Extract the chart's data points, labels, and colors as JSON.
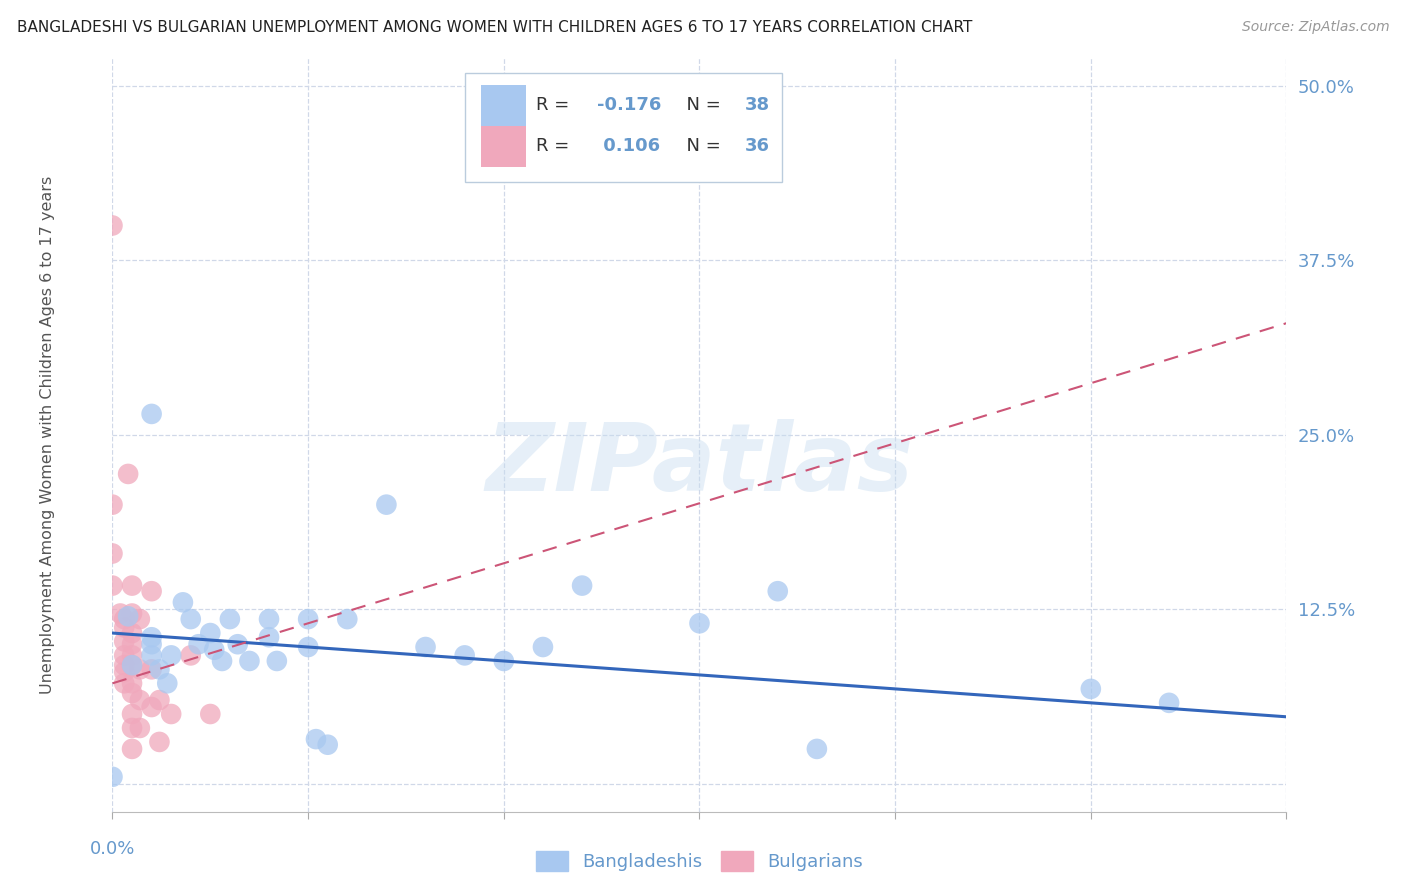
{
  "title": "BANGLADESHI VS BULGARIAN UNEMPLOYMENT AMONG WOMEN WITH CHILDREN AGES 6 TO 17 YEARS CORRELATION CHART",
  "source": "Source: ZipAtlas.com",
  "ylabel": "Unemployment Among Women with Children Ages 6 to 17 years",
  "watermark": "ZIPatlas",
  "xlim": [
    0.0,
    0.3
  ],
  "ylim": [
    -0.02,
    0.52
  ],
  "ylim_data": [
    0.0,
    0.5
  ],
  "xticks": [
    0.0,
    0.05,
    0.1,
    0.15,
    0.2,
    0.25,
    0.3
  ],
  "yticks_right": [
    0.0,
    0.125,
    0.25,
    0.375,
    0.5
  ],
  "yticklabels_right": [
    "",
    "12.5%",
    "25.0%",
    "37.5%",
    "50.0%"
  ],
  "legend_blue_label": "Bangladeshis",
  "legend_pink_label": "Bulgarians",
  "blue_color": "#a8c8f0",
  "pink_color": "#f0a8bc",
  "blue_line_color": "#3366bb",
  "pink_line_color": "#cc5577",
  "grid_color": "#d0d8e8",
  "axis_label_color": "#6699cc",
  "blue_scatter": [
    [
      0.0,
      0.005
    ],
    [
      0.004,
      0.12
    ],
    [
      0.005,
      0.085
    ],
    [
      0.01,
      0.265
    ],
    [
      0.01,
      0.1
    ],
    [
      0.01,
      0.092
    ],
    [
      0.01,
      0.105
    ],
    [
      0.012,
      0.082
    ],
    [
      0.014,
      0.072
    ],
    [
      0.015,
      0.092
    ],
    [
      0.018,
      0.13
    ],
    [
      0.02,
      0.118
    ],
    [
      0.022,
      0.1
    ],
    [
      0.025,
      0.108
    ],
    [
      0.026,
      0.096
    ],
    [
      0.028,
      0.088
    ],
    [
      0.03,
      0.118
    ],
    [
      0.032,
      0.1
    ],
    [
      0.035,
      0.088
    ],
    [
      0.04,
      0.118
    ],
    [
      0.04,
      0.105
    ],
    [
      0.042,
      0.088
    ],
    [
      0.05,
      0.098
    ],
    [
      0.05,
      0.118
    ],
    [
      0.052,
      0.032
    ],
    [
      0.055,
      0.028
    ],
    [
      0.06,
      0.118
    ],
    [
      0.07,
      0.2
    ],
    [
      0.08,
      0.098
    ],
    [
      0.09,
      0.092
    ],
    [
      0.1,
      0.088
    ],
    [
      0.11,
      0.098
    ],
    [
      0.12,
      0.142
    ],
    [
      0.15,
      0.115
    ],
    [
      0.17,
      0.138
    ],
    [
      0.18,
      0.025
    ],
    [
      0.25,
      0.068
    ],
    [
      0.27,
      0.058
    ]
  ],
  "pink_scatter": [
    [
      0.0,
      0.4
    ],
    [
      0.0,
      0.2
    ],
    [
      0.0,
      0.165
    ],
    [
      0.0,
      0.142
    ],
    [
      0.002,
      0.122
    ],
    [
      0.003,
      0.118
    ],
    [
      0.003,
      0.112
    ],
    [
      0.003,
      0.102
    ],
    [
      0.003,
      0.092
    ],
    [
      0.003,
      0.085
    ],
    [
      0.003,
      0.08
    ],
    [
      0.003,
      0.072
    ],
    [
      0.004,
      0.222
    ],
    [
      0.005,
      0.142
    ],
    [
      0.005,
      0.122
    ],
    [
      0.005,
      0.108
    ],
    [
      0.005,
      0.1
    ],
    [
      0.005,
      0.092
    ],
    [
      0.005,
      0.085
    ],
    [
      0.005,
      0.072
    ],
    [
      0.005,
      0.065
    ],
    [
      0.005,
      0.05
    ],
    [
      0.005,
      0.04
    ],
    [
      0.005,
      0.025
    ],
    [
      0.007,
      0.118
    ],
    [
      0.007,
      0.082
    ],
    [
      0.007,
      0.06
    ],
    [
      0.007,
      0.04
    ],
    [
      0.01,
      0.138
    ],
    [
      0.01,
      0.082
    ],
    [
      0.01,
      0.055
    ],
    [
      0.012,
      0.06
    ],
    [
      0.012,
      0.03
    ],
    [
      0.015,
      0.05
    ],
    [
      0.02,
      0.092
    ],
    [
      0.025,
      0.05
    ]
  ],
  "blue_trend_x": [
    0.0,
    0.3
  ],
  "blue_trend_y": [
    0.108,
    0.048
  ],
  "pink_trend_x": [
    0.0,
    0.3
  ],
  "pink_trend_y": [
    0.072,
    0.33
  ]
}
